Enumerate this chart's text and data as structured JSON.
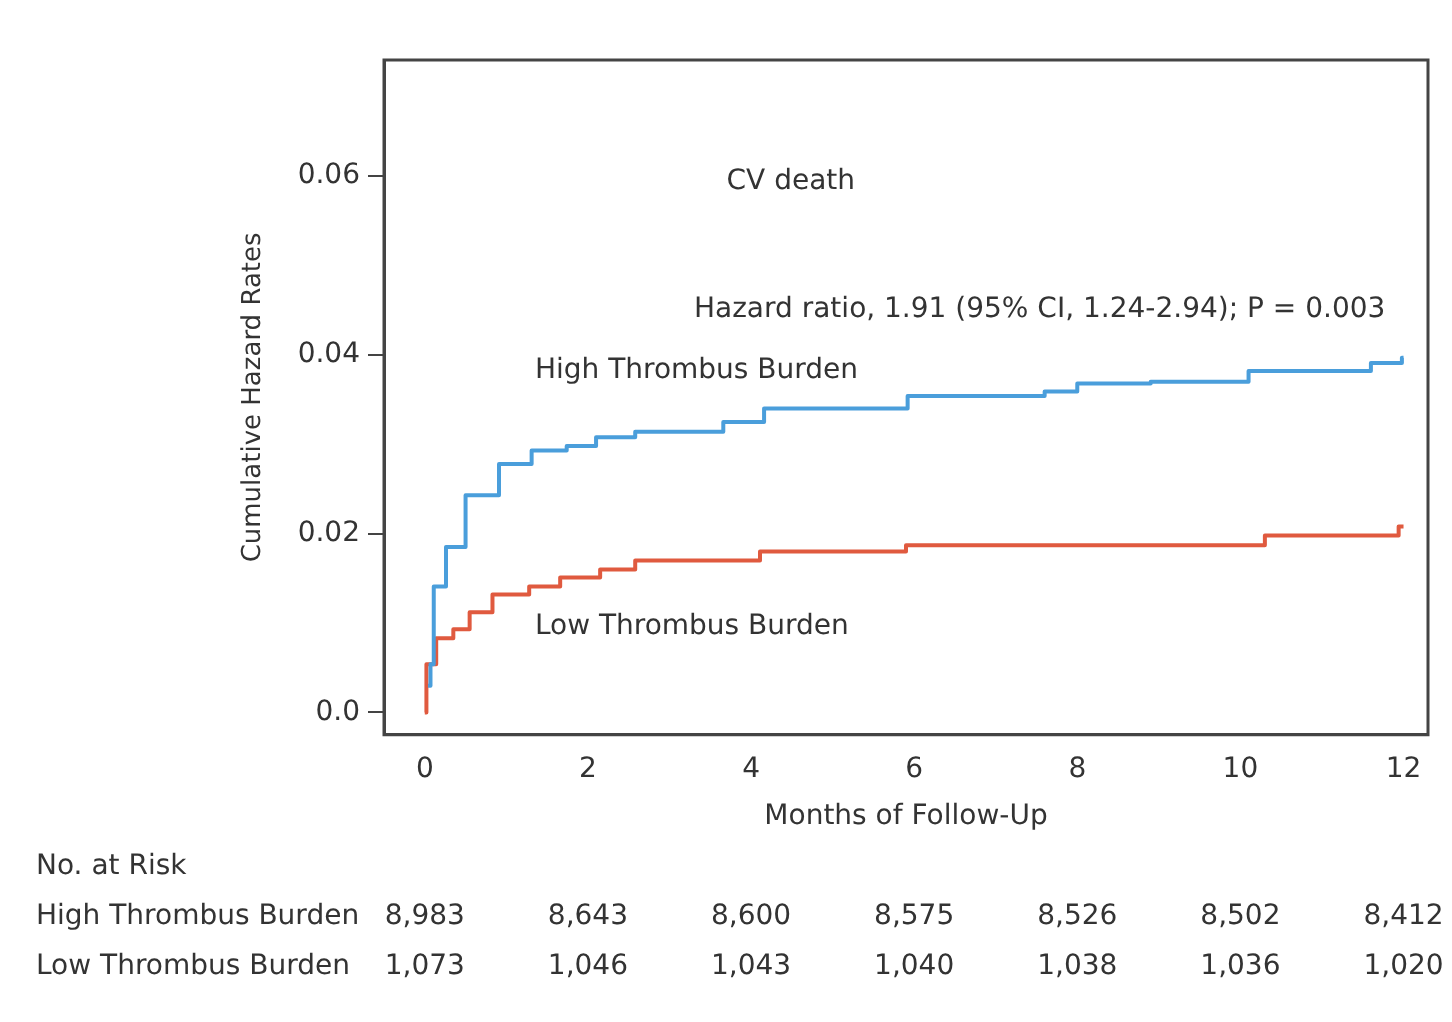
{
  "chart_data": {
    "type": "step",
    "xlabel": "Months of Follow-Up",
    "ylabel": "Cumulative Hazard Rates",
    "xlim": [
      -0.5,
      12.3
    ],
    "ylim": [
      -0.0025,
      0.073
    ],
    "xticks": [
      0,
      2,
      4,
      6,
      8,
      10,
      12
    ],
    "yticks": [
      {
        "value": 0,
        "label": "0.0"
      },
      0.02,
      0.04,
      0.06
    ],
    "grid": false,
    "legend": false,
    "series": [
      {
        "name": "High Thrombus Burden",
        "color": "#4a9edb",
        "x": [
          0.04,
          0.07,
          0.11,
          0.26,
          0.5,
          0.91,
          1.31,
          1.74,
          2.1,
          2.58,
          3.66,
          4.16,
          5.92,
          7.6,
          8.0,
          8.9,
          10.1,
          11.6,
          11.98,
          12
        ],
        "values": [
          0.003,
          0.0054,
          0.0141,
          0.0185,
          0.0243,
          0.0278,
          0.0293,
          0.0298,
          0.0308,
          0.0314,
          0.0325,
          0.034,
          0.0354,
          0.0359,
          0.0368,
          0.037,
          0.0382,
          0.0391,
          0.0397,
          0.0397
        ]
      },
      {
        "name": "Low Thrombus Burden",
        "color": "#e05a3f",
        "x": [
          0,
          0.02,
          0.14,
          0.35,
          0.55,
          0.83,
          1.28,
          1.66,
          2.15,
          2.58,
          4.11,
          5.9,
          10.3,
          11.94,
          12
        ],
        "values": [
          0,
          0.0054,
          0.0083,
          0.0093,
          0.0112,
          0.0132,
          0.0141,
          0.0151,
          0.016,
          0.017,
          0.018,
          0.0187,
          0.0198,
          0.0208,
          0.0208
        ]
      }
    ],
    "annotations": [
      "CV death",
      "Hazard ratio, 1.91 (95% CI, 1.24-2.94); P = 0.003",
      "No. at Risk",
      "High Thrombus Burden",
      "8,983",
      "8,643",
      "8,600",
      "8,575",
      "8,526",
      "8,502",
      "8,412",
      "Low Thrombus Burden",
      "1,073",
      "1,046",
      "1,043",
      "1,040",
      "1,038",
      "1,036",
      "1,020"
    ]
  }
}
